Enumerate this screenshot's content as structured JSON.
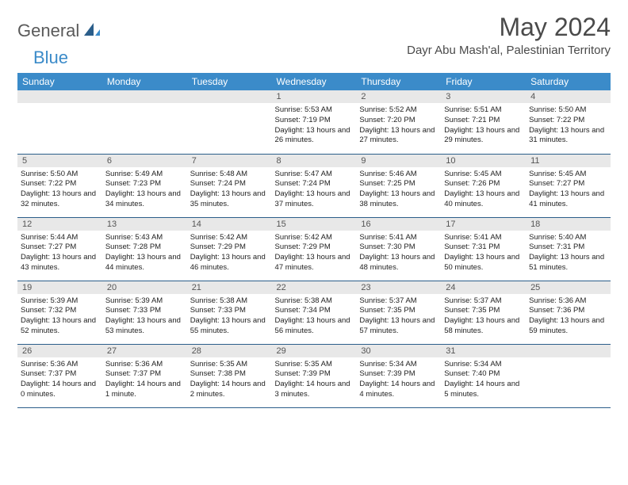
{
  "brand": {
    "general": "General",
    "blue": "Blue"
  },
  "title": "May 2024",
  "location": "Dayr Abu Mash'al, Palestinian Territory",
  "colors": {
    "header_bg": "#3b8bc9",
    "header_text": "#ffffff",
    "daynum_bg": "#e8e8e8",
    "border": "#2b5e8a"
  },
  "weekdays": [
    "Sunday",
    "Monday",
    "Tuesday",
    "Wednesday",
    "Thursday",
    "Friday",
    "Saturday"
  ],
  "weeks": [
    [
      null,
      null,
      null,
      {
        "n": "1",
        "sr": "5:53 AM",
        "ss": "7:19 PM",
        "dl": "13 hours and 26 minutes."
      },
      {
        "n": "2",
        "sr": "5:52 AM",
        "ss": "7:20 PM",
        "dl": "13 hours and 27 minutes."
      },
      {
        "n": "3",
        "sr": "5:51 AM",
        "ss": "7:21 PM",
        "dl": "13 hours and 29 minutes."
      },
      {
        "n": "4",
        "sr": "5:50 AM",
        "ss": "7:22 PM",
        "dl": "13 hours and 31 minutes."
      }
    ],
    [
      {
        "n": "5",
        "sr": "5:50 AM",
        "ss": "7:22 PM",
        "dl": "13 hours and 32 minutes."
      },
      {
        "n": "6",
        "sr": "5:49 AM",
        "ss": "7:23 PM",
        "dl": "13 hours and 34 minutes."
      },
      {
        "n": "7",
        "sr": "5:48 AM",
        "ss": "7:24 PM",
        "dl": "13 hours and 35 minutes."
      },
      {
        "n": "8",
        "sr": "5:47 AM",
        "ss": "7:24 PM",
        "dl": "13 hours and 37 minutes."
      },
      {
        "n": "9",
        "sr": "5:46 AM",
        "ss": "7:25 PM",
        "dl": "13 hours and 38 minutes."
      },
      {
        "n": "10",
        "sr": "5:45 AM",
        "ss": "7:26 PM",
        "dl": "13 hours and 40 minutes."
      },
      {
        "n": "11",
        "sr": "5:45 AM",
        "ss": "7:27 PM",
        "dl": "13 hours and 41 minutes."
      }
    ],
    [
      {
        "n": "12",
        "sr": "5:44 AM",
        "ss": "7:27 PM",
        "dl": "13 hours and 43 minutes."
      },
      {
        "n": "13",
        "sr": "5:43 AM",
        "ss": "7:28 PM",
        "dl": "13 hours and 44 minutes."
      },
      {
        "n": "14",
        "sr": "5:42 AM",
        "ss": "7:29 PM",
        "dl": "13 hours and 46 minutes."
      },
      {
        "n": "15",
        "sr": "5:42 AM",
        "ss": "7:29 PM",
        "dl": "13 hours and 47 minutes."
      },
      {
        "n": "16",
        "sr": "5:41 AM",
        "ss": "7:30 PM",
        "dl": "13 hours and 48 minutes."
      },
      {
        "n": "17",
        "sr": "5:41 AM",
        "ss": "7:31 PM",
        "dl": "13 hours and 50 minutes."
      },
      {
        "n": "18",
        "sr": "5:40 AM",
        "ss": "7:31 PM",
        "dl": "13 hours and 51 minutes."
      }
    ],
    [
      {
        "n": "19",
        "sr": "5:39 AM",
        "ss": "7:32 PM",
        "dl": "13 hours and 52 minutes."
      },
      {
        "n": "20",
        "sr": "5:39 AM",
        "ss": "7:33 PM",
        "dl": "13 hours and 53 minutes."
      },
      {
        "n": "21",
        "sr": "5:38 AM",
        "ss": "7:33 PM",
        "dl": "13 hours and 55 minutes."
      },
      {
        "n": "22",
        "sr": "5:38 AM",
        "ss": "7:34 PM",
        "dl": "13 hours and 56 minutes."
      },
      {
        "n": "23",
        "sr": "5:37 AM",
        "ss": "7:35 PM",
        "dl": "13 hours and 57 minutes."
      },
      {
        "n": "24",
        "sr": "5:37 AM",
        "ss": "7:35 PM",
        "dl": "13 hours and 58 minutes."
      },
      {
        "n": "25",
        "sr": "5:36 AM",
        "ss": "7:36 PM",
        "dl": "13 hours and 59 minutes."
      }
    ],
    [
      {
        "n": "26",
        "sr": "5:36 AM",
        "ss": "7:37 PM",
        "dl": "14 hours and 0 minutes."
      },
      {
        "n": "27",
        "sr": "5:36 AM",
        "ss": "7:37 PM",
        "dl": "14 hours and 1 minute."
      },
      {
        "n": "28",
        "sr": "5:35 AM",
        "ss": "7:38 PM",
        "dl": "14 hours and 2 minutes."
      },
      {
        "n": "29",
        "sr": "5:35 AM",
        "ss": "7:39 PM",
        "dl": "14 hours and 3 minutes."
      },
      {
        "n": "30",
        "sr": "5:34 AM",
        "ss": "7:39 PM",
        "dl": "14 hours and 4 minutes."
      },
      {
        "n": "31",
        "sr": "5:34 AM",
        "ss": "7:40 PM",
        "dl": "14 hours and 5 minutes."
      },
      null
    ]
  ],
  "labels": {
    "sunrise": "Sunrise:",
    "sunset": "Sunset:",
    "daylight": "Daylight:"
  }
}
